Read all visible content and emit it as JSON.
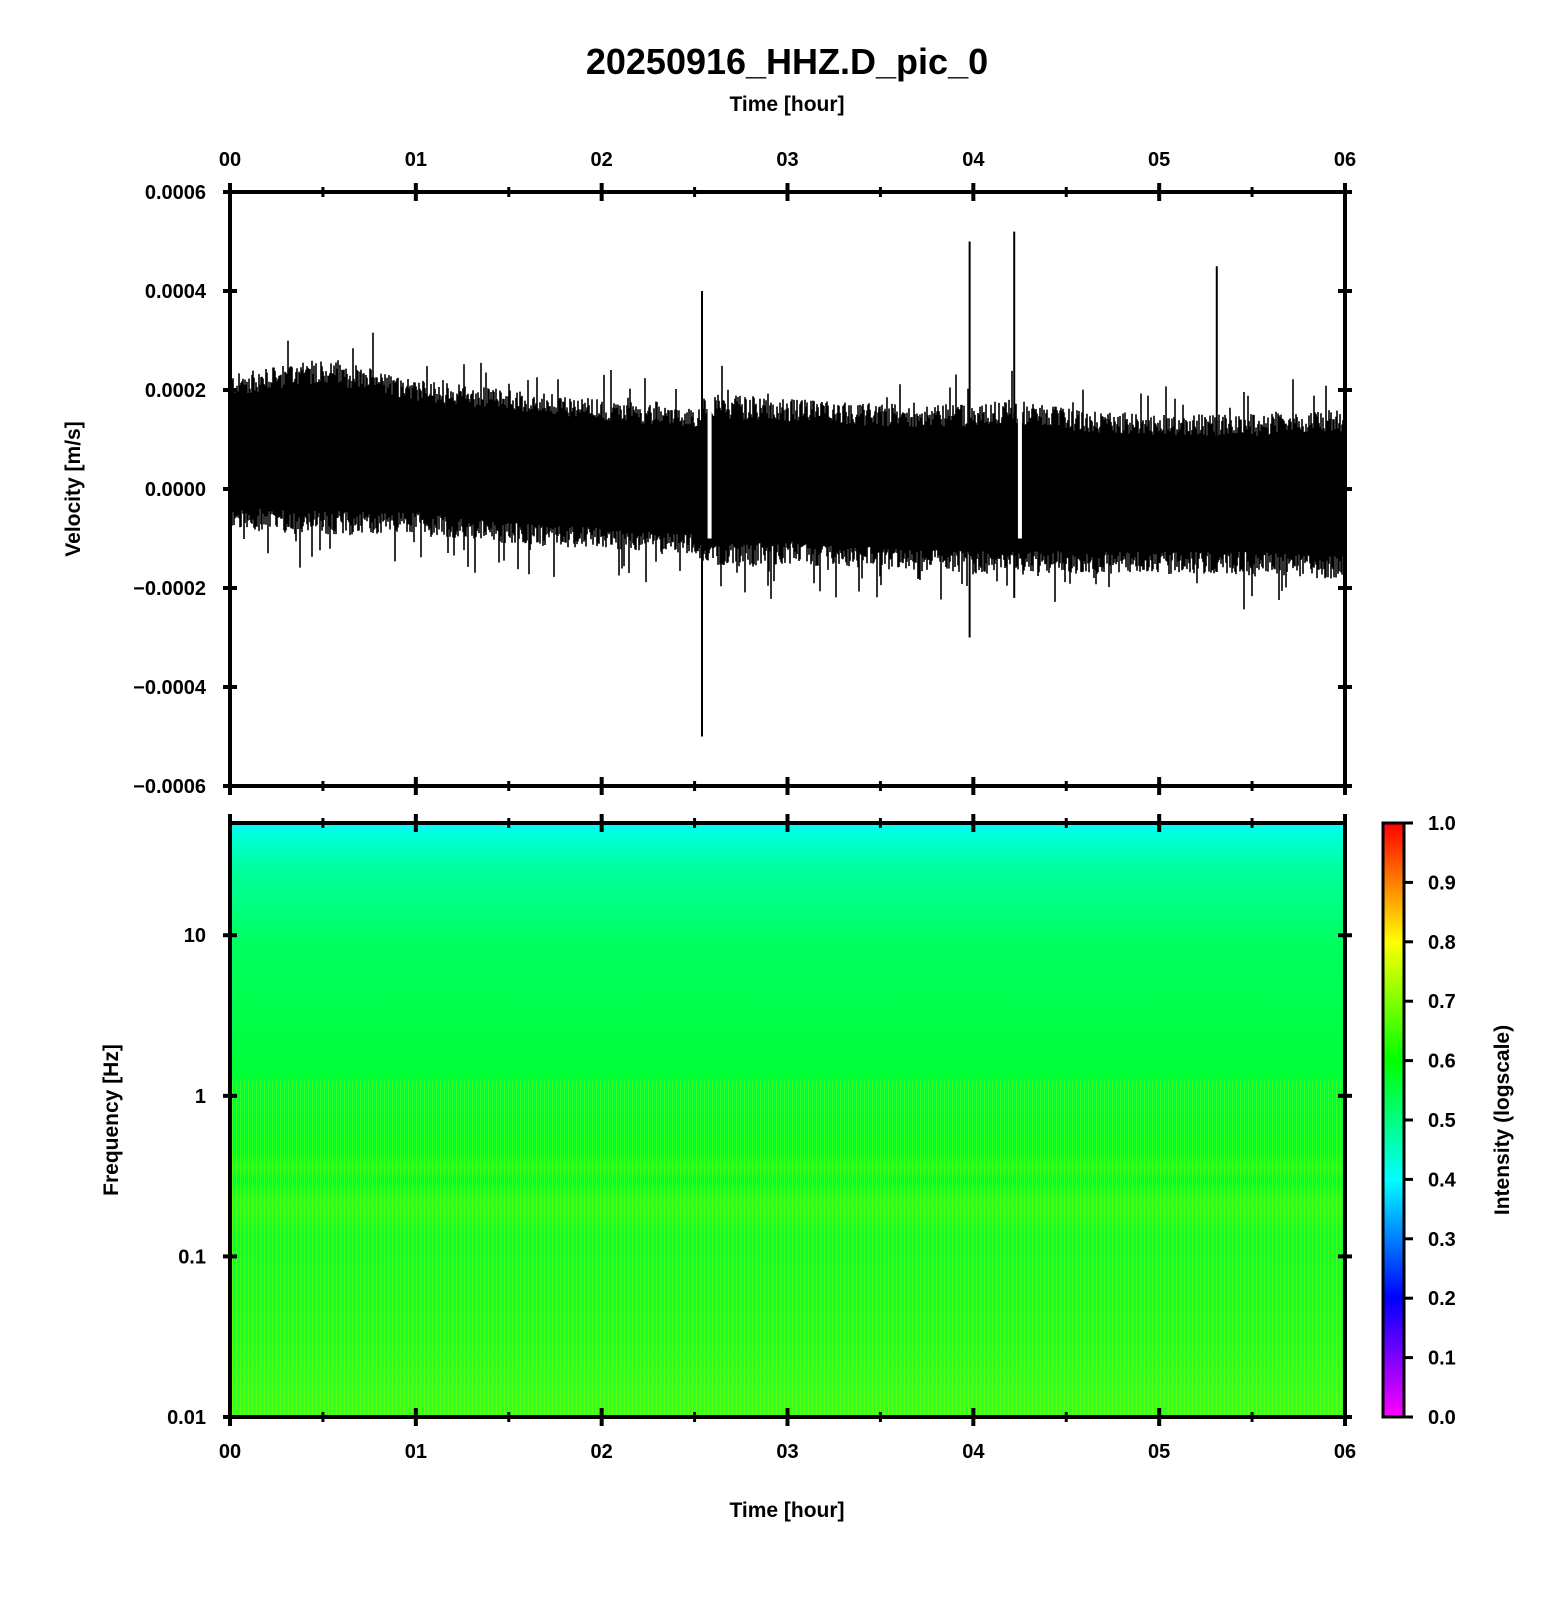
{
  "title": "20250916_HHZ.D_pic_0",
  "chart_data": [
    {
      "type": "line",
      "panel": "waveform",
      "x_axis_label_top": "Time [hour]",
      "ylabel": "Velocity [m/s]",
      "x_ticks": [
        "00",
        "01",
        "02",
        "03",
        "04",
        "05",
        "06"
      ],
      "xlim": [
        0,
        6
      ],
      "ylim": [
        -0.0006,
        0.0006
      ],
      "y_ticks": [
        {
          "value": 0.0006,
          "label": "0.0006"
        },
        {
          "value": 0.0004,
          "label": "0.0004"
        },
        {
          "value": 0.0002,
          "label": "0.0002"
        },
        {
          "value": 0.0,
          "label": "0.0000"
        },
        {
          "value": -0.0002,
          "label": "−0.0002"
        },
        {
          "value": -0.0004,
          "label": "−0.0004"
        },
        {
          "value": -0.0006,
          "label": "−0.0006"
        }
      ],
      "envelope": {
        "x": [
          0,
          0.5,
          1.0,
          1.5,
          2.0,
          2.5,
          2.55,
          3.0,
          3.5,
          4.0,
          4.2,
          4.5,
          5.0,
          5.5,
          6.0
        ],
        "upper": [
          0.00022,
          0.00025,
          0.00021,
          0.00019,
          0.00017,
          0.00015,
          0.00018,
          0.00017,
          0.00016,
          0.00016,
          0.00017,
          0.00015,
          0.00014,
          0.00014,
          0.00015
        ],
        "lower": [
          -7e-05,
          -8e-05,
          -8e-05,
          -0.0001,
          -0.00011,
          -0.00012,
          -0.00015,
          -0.00014,
          -0.00015,
          -0.00016,
          -0.00016,
          -0.00016,
          -0.00016,
          -0.00016,
          -0.00017
        ]
      },
      "events": [
        {
          "x": 2.54,
          "max": 0.0004,
          "min": -0.0005
        },
        {
          "x": 3.98,
          "max": 0.0005,
          "min": -0.0003
        },
        {
          "x": 4.22,
          "max": 0.00052,
          "min": -0.00022
        },
        {
          "x": 5.31,
          "max": 0.00045,
          "min": -0.00015
        }
      ]
    },
    {
      "type": "heatmap",
      "panel": "spectrogram",
      "xlabel": "Time [hour]",
      "ylabel": "Frequency [Hz]",
      "x_ticks": [
        "00",
        "01",
        "02",
        "03",
        "04",
        "05",
        "06"
      ],
      "xlim": [
        0,
        6
      ],
      "y_scale": "log",
      "ylim": [
        0.01,
        50
      ],
      "y_ticks": [
        {
          "value": 10,
          "label": "10"
        },
        {
          "value": 1,
          "label": "1"
        },
        {
          "value": 0.1,
          "label": "0.1"
        },
        {
          "value": 0.01,
          "label": "0.01"
        }
      ],
      "intensity_profile": {
        "frequency": [
          0.01,
          0.03,
          0.1,
          0.2,
          0.3,
          0.45,
          1,
          5,
          20,
          40,
          50
        ],
        "intensity": [
          0.7,
          0.66,
          0.63,
          0.66,
          0.62,
          0.64,
          0.6,
          0.57,
          0.5,
          0.44,
          0.41
        ]
      },
      "colorbar": {
        "label": "Intensity (logscale)",
        "range": [
          0.0,
          1.0
        ],
        "ticks": [
          "0.0",
          "0.1",
          "0.2",
          "0.3",
          "0.4",
          "0.5",
          "0.6",
          "0.7",
          "0.8",
          "0.9",
          "1.0"
        ],
        "colormap": [
          "#ff00ff",
          "#7f00ff",
          "#0000ff",
          "#007fff",
          "#00ffff",
          "#00ff7f",
          "#00ff00",
          "#7fff00",
          "#ffff00",
          "#ff7f00",
          "#ff0000"
        ]
      }
    }
  ]
}
